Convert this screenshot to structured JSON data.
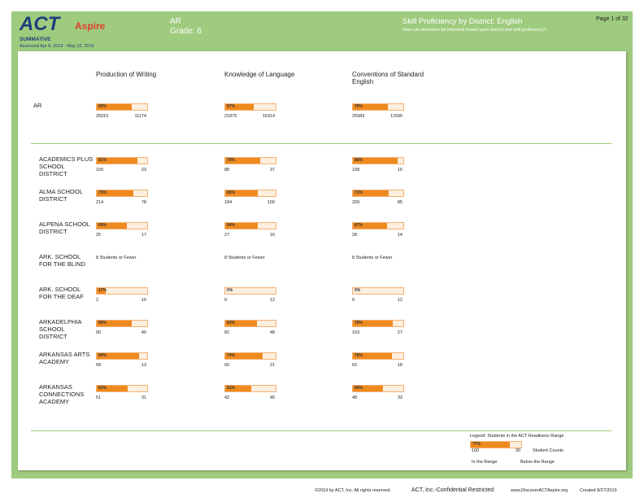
{
  "header": {
    "logo_act": "ACT",
    "logo_aspire": "Aspire",
    "summative": "SUMMATIVE",
    "assessed": "Assessed Apr 8, 2019 - May 22, 2019",
    "state": "AR",
    "grade": "Grade: 6",
    "report_title": "Skill Proficiency by District: English",
    "question": "How can decisions be informed based upon district and skill proficiency?",
    "page": "Page 1 of 32"
  },
  "columns": [
    "Production of Writing",
    "Knowledge of Language",
    "Conventions of Standard English"
  ],
  "state_row": {
    "name": "AR",
    "cells": [
      {
        "percent": 69,
        "label": "69%",
        "in_range": 25015,
        "below": 11174
      },
      {
        "percent": 57,
        "label": "57%",
        "in_range": 21875,
        "below": 16314
      },
      {
        "percent": 70,
        "label": "70%",
        "in_range": 25589,
        "below": 11590
      }
    ]
  },
  "rows": [
    {
      "name": "ACADEMICS PLUS SCHOOL DISTRICT",
      "cells": [
        {
          "percent": 81,
          "label": "81%",
          "in_range": 100,
          "below": 23
        },
        {
          "percent": 70,
          "label": "70%",
          "in_range": 88,
          "below": 37
        },
        {
          "percent": 88,
          "label": "88%",
          "in_range": 108,
          "below": 15
        }
      ]
    },
    {
      "name": "ALMA SCHOOL DISTRICT",
      "cells": [
        {
          "percent": 73,
          "label": "73%",
          "in_range": 214,
          "below": 78
        },
        {
          "percent": 65,
          "label": "65%",
          "in_range": 184,
          "below": 100
        },
        {
          "percent": 71,
          "label": "71%",
          "in_range": 209,
          "below": 85
        }
      ]
    },
    {
      "name": "ALPENA SCHOOL DISTRICT",
      "cells": [
        {
          "percent": 60,
          "label": "60%",
          "in_range": 25,
          "below": 17
        },
        {
          "percent": 64,
          "label": "64%",
          "in_range": 27,
          "below": 15
        },
        {
          "percent": 67,
          "label": "67%",
          "in_range": 28,
          "below": 14
        }
      ]
    },
    {
      "name": "ARK. SCHOOL FOR THE BLIND",
      "cells": [
        {
          "note": "8 Students or Fewer"
        },
        {
          "note": "8 Students or Fewer"
        },
        {
          "note": "8 Students or Fewer"
        }
      ]
    },
    {
      "name": "ARK. SCHOOL FOR THE DEAF",
      "cells": [
        {
          "percent": 17,
          "label": "17%",
          "in_range": 2,
          "below": 10
        },
        {
          "percent": 0,
          "label": "0%",
          "in_range": 0,
          "below": 12
        },
        {
          "percent": 0,
          "label": "0%",
          "in_range": 0,
          "below": 12
        }
      ]
    },
    {
      "name": "ARKADELPHIA SCHOOL DISTRICT",
      "cells": [
        {
          "percent": 69,
          "label": "69%",
          "in_range": 90,
          "below": 40
        },
        {
          "percent": 63,
          "label": "63%",
          "in_range": 82,
          "below": 48
        },
        {
          "percent": 79,
          "label": "79%",
          "in_range": 103,
          "below": 27
        }
      ]
    },
    {
      "name": "ARKANSAS ARTS ACADEMY",
      "cells": [
        {
          "percent": 84,
          "label": "84%",
          "in_range": 68,
          "below": 13
        },
        {
          "percent": 74,
          "label": "74%",
          "in_range": 60,
          "below": 21
        },
        {
          "percent": 78,
          "label": "78%",
          "in_range": 63,
          "below": 18
        }
      ]
    },
    {
      "name": "ARKANSAS CONNECTIONS ACADEMY",
      "cells": [
        {
          "percent": 62,
          "label": "62%",
          "in_range": 51,
          "below": 31
        },
        {
          "percent": 51,
          "label": "51%",
          "in_range": 42,
          "below": 40
        },
        {
          "percent": 60,
          "label": "60%",
          "in_range": 48,
          "below": 33
        }
      ]
    }
  ],
  "legend": {
    "title": "Legend: Students in the ACT Readiness Range",
    "sample": {
      "percent": 77,
      "label": "77%",
      "in_range": 100,
      "below": 30
    },
    "counts_label": "Student Counts",
    "in_label": "In the Range",
    "below_label": "Below the Range"
  },
  "footer": {
    "copyright": "©2019 by ACT, Inc. All rights reserved.",
    "confidential": "ACT, Inc.-Confidential Restricted",
    "website": "www.DiscoverACTAspire.org",
    "created": "Created 8/27/2019"
  }
}
